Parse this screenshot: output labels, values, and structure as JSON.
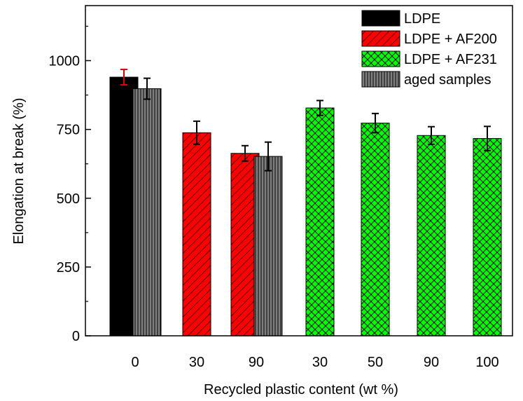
{
  "chart_data": {
    "type": "bar",
    "xlabel": "Recycled plastic content (wt %)",
    "ylabel": "Elongation at break (%)",
    "ylim": [
      0,
      1200
    ],
    "yticks": [
      0,
      250,
      500,
      750,
      1000
    ],
    "grid": false,
    "legend_position": "top-right",
    "categories": [
      "0",
      "30",
      "90",
      "30",
      "50",
      "90",
      "100"
    ],
    "series": [
      {
        "name": "LDPE",
        "color": "#000000",
        "pattern": "solid",
        "points": [
          {
            "category_index": 0,
            "value": 940,
            "error": 28,
            "error_color": "#e00000"
          }
        ]
      },
      {
        "name": "LDPE + AF200",
        "color": "#ff0000",
        "pattern": "diagonal-hatch",
        "points": [
          {
            "category_index": 1,
            "value": 738,
            "error": 42
          },
          {
            "category_index": 2,
            "value": 663,
            "error": 28
          }
        ]
      },
      {
        "name": "LDPE + AF231",
        "color": "#00ff00",
        "pattern": "cross-hatch",
        "points": [
          {
            "category_index": 3,
            "value": 828,
            "error": 27
          },
          {
            "category_index": 4,
            "value": 773,
            "error": 35
          },
          {
            "category_index": 5,
            "value": 728,
            "error": 32
          },
          {
            "category_index": 6,
            "value": 717,
            "error": 44
          }
        ]
      },
      {
        "name": "aged samples",
        "color": "#808080",
        "pattern": "vertical-lines",
        "points": [
          {
            "category_index": 0,
            "value": 898,
            "error": 38
          },
          {
            "category_index": 2,
            "value": 652,
            "error": 52
          }
        ]
      }
    ]
  }
}
